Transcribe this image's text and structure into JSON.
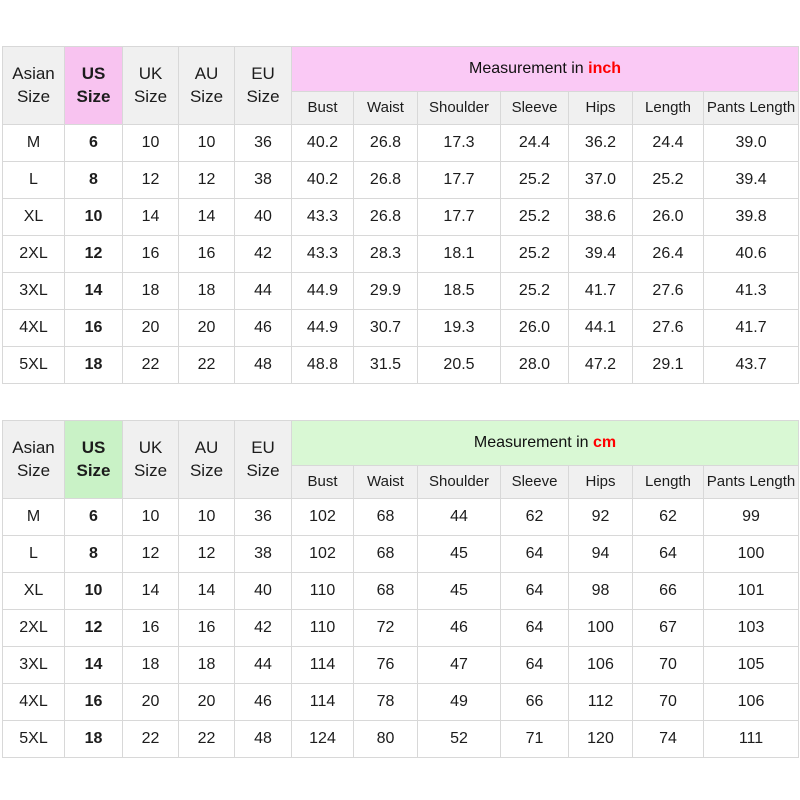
{
  "chart_data": [
    {
      "type": "table",
      "measurement_label": "Measurement in",
      "measurement_unit": "inch",
      "band_color": "#fac9f5",
      "us_cell_color": "#f8c3f0",
      "unit_color": "#ff0000",
      "header_bg": "#f0f0f0",
      "size_headers": [
        "Asian Size",
        "US Size",
        "UK Size",
        "AU Size",
        "EU Size"
      ],
      "measure_headers": [
        "Bust",
        "Waist",
        "Shoulder",
        "Sleeve",
        "Hips",
        "Length",
        "Pants Length"
      ],
      "rows": [
        {
          "cells": [
            "M",
            "6",
            "10",
            "10",
            "36",
            "40.2",
            "26.8",
            "17.3",
            "24.4",
            "36.2",
            "24.4",
            "39.0"
          ]
        },
        {
          "cells": [
            "L",
            "8",
            "12",
            "12",
            "38",
            "40.2",
            "26.8",
            "17.7",
            "25.2",
            "37.0",
            "25.2",
            "39.4"
          ]
        },
        {
          "cells": [
            "XL",
            "10",
            "14",
            "14",
            "40",
            "43.3",
            "26.8",
            "17.7",
            "25.2",
            "38.6",
            "26.0",
            "39.8"
          ]
        },
        {
          "cells": [
            "2XL",
            "12",
            "16",
            "16",
            "42",
            "43.3",
            "28.3",
            "18.1",
            "25.2",
            "39.4",
            "26.4",
            "40.6"
          ]
        },
        {
          "cells": [
            "3XL",
            "14",
            "18",
            "18",
            "44",
            "44.9",
            "29.9",
            "18.5",
            "25.2",
            "41.7",
            "27.6",
            "41.3"
          ]
        },
        {
          "cells": [
            "4XL",
            "16",
            "20",
            "20",
            "46",
            "44.9",
            "30.7",
            "19.3",
            "26.0",
            "44.1",
            "27.6",
            "41.7"
          ]
        },
        {
          "cells": [
            "5XL",
            "18",
            "22",
            "22",
            "48",
            "48.8",
            "31.5",
            "20.5",
            "28.0",
            "47.2",
            "29.1",
            "43.7"
          ]
        }
      ]
    },
    {
      "type": "table",
      "measurement_label": "Measurement in",
      "measurement_unit": "cm",
      "band_color": "#d9f8d4",
      "us_cell_color": "#c9f2c6",
      "unit_color": "#ff0000",
      "header_bg": "#f0f0f0",
      "size_headers": [
        "Asian Size",
        "US Size",
        "UK Size",
        "AU Size",
        "EU Size"
      ],
      "measure_headers": [
        "Bust",
        "Waist",
        "Shoulder",
        "Sleeve",
        "Hips",
        "Length",
        "Pants Length"
      ],
      "rows": [
        {
          "cells": [
            "M",
            "6",
            "10",
            "10",
            "36",
            "102",
            "68",
            "44",
            "62",
            "92",
            "62",
            "99"
          ]
        },
        {
          "cells": [
            "L",
            "8",
            "12",
            "12",
            "38",
            "102",
            "68",
            "45",
            "64",
            "94",
            "64",
            "100"
          ]
        },
        {
          "cells": [
            "XL",
            "10",
            "14",
            "14",
            "40",
            "110",
            "68",
            "45",
            "64",
            "98",
            "66",
            "101"
          ]
        },
        {
          "cells": [
            "2XL",
            "12",
            "16",
            "16",
            "42",
            "110",
            "72",
            "46",
            "64",
            "100",
            "67",
            "103"
          ]
        },
        {
          "cells": [
            "3XL",
            "14",
            "18",
            "18",
            "44",
            "114",
            "76",
            "47",
            "64",
            "106",
            "70",
            "105"
          ]
        },
        {
          "cells": [
            "4XL",
            "16",
            "20",
            "20",
            "46",
            "114",
            "78",
            "49",
            "66",
            "112",
            "70",
            "106"
          ]
        },
        {
          "cells": [
            "5XL",
            "18",
            "22",
            "22",
            "48",
            "124",
            "80",
            "52",
            "71",
            "120",
            "74",
            "111"
          ]
        }
      ]
    }
  ]
}
